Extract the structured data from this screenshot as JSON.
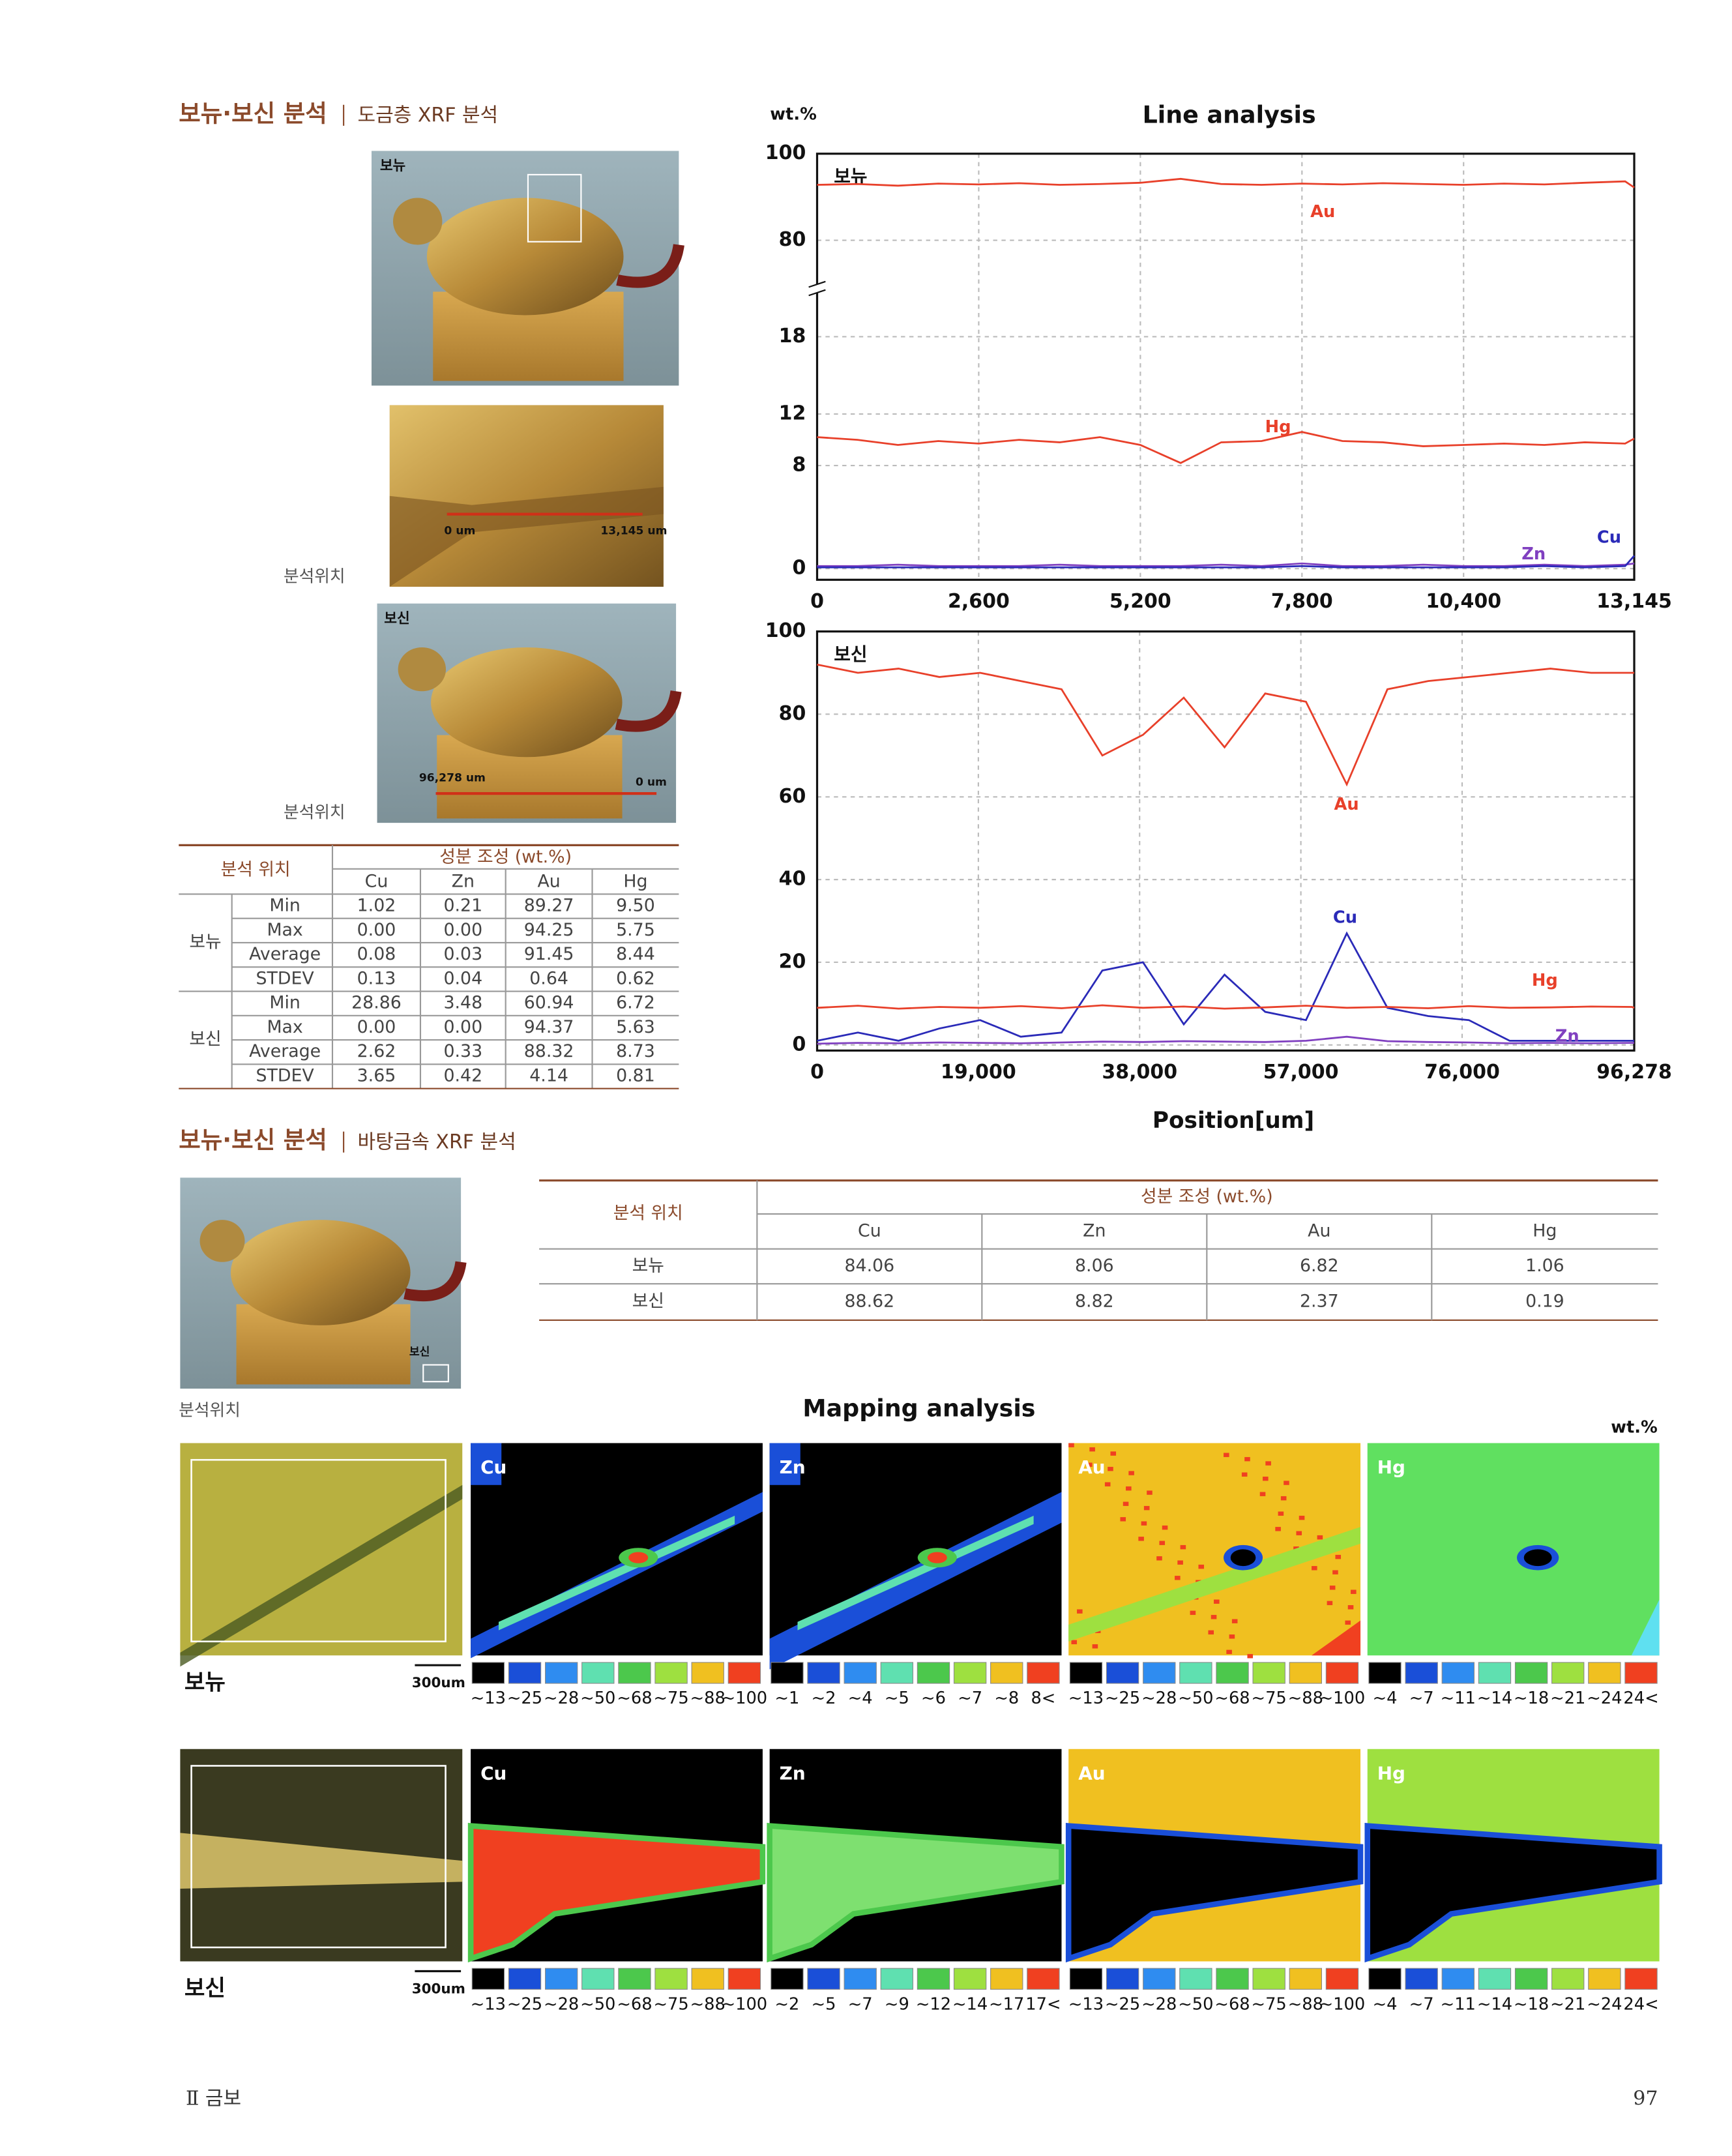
{
  "section1": {
    "title": "보뉴·보신 분석",
    "subtitle": "도금층 XRF 분석"
  },
  "photos": {
    "bonyu": "보뉴",
    "bosin": "보신",
    "position_label": "분석위치",
    "scan1_start": "0 um",
    "scan1_end": "13,145 um",
    "scan2_start": "96,278 um",
    "scan2_end": "0 um"
  },
  "table1": {
    "header": [
      "분석 위치",
      "성분 조성 (wt.%)"
    ],
    "columns": [
      "Cu",
      "Zn",
      "Au",
      "Hg"
    ],
    "groups": [
      {
        "name": "보뉴",
        "rows": [
          {
            "stat": "Min",
            "values": [
              "1.02",
              "0.21",
              "89.27",
              "9.50"
            ]
          },
          {
            "stat": "Max",
            "values": [
              "0.00",
              "0.00",
              "94.25",
              "5.75"
            ]
          },
          {
            "stat": "Average",
            "values": [
              "0.08",
              "0.03",
              "91.45",
              "8.44"
            ]
          },
          {
            "stat": "STDEV",
            "values": [
              "0.13",
              "0.04",
              "0.64",
              "0.62"
            ]
          }
        ]
      },
      {
        "name": "보신",
        "rows": [
          {
            "stat": "Min",
            "values": [
              "28.86",
              "3.48",
              "60.94",
              "6.72"
            ]
          },
          {
            "stat": "Max",
            "values": [
              "0.00",
              "0.00",
              "94.37",
              "5.63"
            ]
          },
          {
            "stat": "Average",
            "values": [
              "2.62",
              "0.33",
              "88.32",
              "8.73"
            ]
          },
          {
            "stat": "STDEV",
            "values": [
              "3.65",
              "0.42",
              "4.14",
              "0.81"
            ]
          }
        ]
      }
    ]
  },
  "line_analysis": {
    "title": "Line analysis",
    "y_unit": "wt.%",
    "x_label": "Position[um]",
    "grid": true,
    "charts": [
      {
        "type": "line",
        "panel_label": "보뉴",
        "xlim": [
          0,
          13145
        ],
        "xticks": [
          0,
          {
            "value": 2600,
            "label": "2,600"
          },
          {
            "value": 5200,
            "label": "5,200"
          },
          {
            "value": 7800,
            "label": "7,800"
          },
          {
            "value": 10400,
            "label": "10,400"
          },
          {
            "value": 13145,
            "label": "13,145"
          }
        ],
        "ylim": [
          0,
          100
        ],
        "axis_break": [
          18,
          80
        ],
        "yticks": [
          0,
          8,
          12,
          18,
          80,
          100
        ],
        "x": [
          0,
          650,
          1300,
          1950,
          2600,
          3250,
          3900,
          4550,
          5200,
          5850,
          6500,
          7150,
          7800,
          8450,
          9100,
          9750,
          10400,
          11050,
          11700,
          12350,
          13000,
          13145
        ],
        "series": [
          {
            "name": "Au",
            "color": "#e8402a",
            "values": [
              92.8,
              93.0,
              92.6,
              93.1,
              92.9,
              93.2,
              92.8,
              93.0,
              93.3,
              94.2,
              93.0,
              92.8,
              93.1,
              92.9,
              93.2,
              93.0,
              92.8,
              93.1,
              92.9,
              93.3,
              93.6,
              92.2
            ]
          },
          {
            "name": "Hg",
            "color": "#e8402a",
            "values": [
              10.2,
              10.0,
              9.6,
              9.9,
              9.7,
              10.0,
              9.8,
              10.2,
              9.6,
              8.2,
              9.8,
              9.9,
              10.6,
              9.9,
              9.8,
              9.5,
              9.6,
              9.7,
              9.6,
              9.8,
              9.7,
              10.1
            ]
          },
          {
            "name": "Zn",
            "color": "#8040c0",
            "values": [
              0.2,
              0.2,
              0.3,
              0.2,
              0.2,
              0.2,
              0.3,
              0.2,
              0.2,
              0.2,
              0.3,
              0.2,
              0.4,
              0.2,
              0.2,
              0.3,
              0.2,
              0.2,
              0.3,
              0.2,
              0.3,
              0.4
            ]
          },
          {
            "name": "Cu",
            "color": "#2a2ab8",
            "values": [
              0.1,
              0.1,
              0.1,
              0.1,
              0.1,
              0.1,
              0.1,
              0.1,
              0.1,
              0.1,
              0.1,
              0.1,
              0.2,
              0.1,
              0.1,
              0.1,
              0.1,
              0.1,
              0.2,
              0.1,
              0.2,
              1.0
            ]
          }
        ]
      },
      {
        "type": "line",
        "panel_label": "보신",
        "xlim": [
          0,
          96278
        ],
        "xticks": [
          0,
          {
            "value": 19000,
            "label": "19,000"
          },
          {
            "value": 38000,
            "label": "38,000"
          },
          {
            "value": 57000,
            "label": "57,000"
          },
          {
            "value": 76000,
            "label": "76,000"
          },
          {
            "value": 96278,
            "label": "96,278"
          }
        ],
        "ylim": [
          0,
          100
        ],
        "yticks": [
          0,
          20,
          40,
          60,
          80,
          100
        ],
        "x": [
          0,
          4800,
          9600,
          14400,
          19200,
          24000,
          28800,
          33600,
          38400,
          43200,
          48000,
          52800,
          57600,
          62400,
          67200,
          72000,
          76800,
          81600,
          86400,
          91200,
          96000,
          96278
        ],
        "series": [
          {
            "name": "Au",
            "color": "#e8402a",
            "values": [
              92,
              90,
              91,
              89,
              90,
              88,
              86,
              70,
              75,
              84,
              72,
              85,
              83,
              63,
              86,
              88,
              89,
              90,
              91,
              90,
              90,
              90
            ]
          },
          {
            "name": "Cu",
            "color": "#2a2ab8",
            "values": [
              1,
              3,
              1,
              4,
              6,
              2,
              3,
              18,
              20,
              5,
              17,
              8,
              6,
              27,
              9,
              7,
              6,
              1,
              1,
              1,
              1,
              1
            ]
          },
          {
            "name": "Hg",
            "color": "#e8402a",
            "values": [
              9,
              9.5,
              8.8,
              9.2,
              9,
              9.4,
              8.9,
              9.6,
              9,
              9.3,
              8.8,
              9.1,
              9.5,
              9,
              9.2,
              8.9,
              9.4,
              9,
              9.1,
              9.3,
              9.2,
              9
            ]
          },
          {
            "name": "Zn",
            "color": "#8040c0",
            "values": [
              0.3,
              0.5,
              0.4,
              0.6,
              0.5,
              0.4,
              0.6,
              0.8,
              0.7,
              0.9,
              0.8,
              0.7,
              1.0,
              2.0,
              0.9,
              0.7,
              0.6,
              0.4,
              0.5,
              0.4,
              0.5,
              0.5
            ]
          }
        ]
      }
    ]
  },
  "section2": {
    "title": "보뉴·보신 분석",
    "subtitle": "바탕금속 XRF 분석",
    "photo_label": "보신",
    "position_label": "분석위치"
  },
  "table2": {
    "header": [
      "분석 위치",
      "성분 조성 (wt.%)"
    ],
    "columns": [
      "Cu",
      "Zn",
      "Au",
      "Hg"
    ],
    "rows": [
      {
        "name": "보뉴",
        "values": [
          "84.06",
          "8.06",
          "6.82",
          "1.06"
        ]
      },
      {
        "name": "보신",
        "values": [
          "88.62",
          "8.82",
          "2.37",
          "0.19"
        ]
      }
    ]
  },
  "mapping": {
    "title": "Mapping analysis",
    "unit": "wt.%",
    "scale_label": "300um",
    "legend_colors": [
      "#000000",
      "#1a4fd8",
      "#2f8cf0",
      "#5fe0b0",
      "#4cc84c",
      "#9ee040",
      "#f0c020",
      "#f04020"
    ],
    "rows": [
      {
        "name": "보뉴",
        "panels": [
          {
            "element": "Cu",
            "legend": [
              "~13",
              "~25",
              "~28",
              "~50",
              "~68",
              "~75",
              "~88",
              "~100"
            ]
          },
          {
            "element": "Zn",
            "legend": [
              "~1",
              "~2",
              "~4",
              "~5",
              "~6",
              "~7",
              "~8",
              "8<"
            ]
          },
          {
            "element": "Au",
            "legend": [
              "~13",
              "~25",
              "~28",
              "~50",
              "~68",
              "~75",
              "~88",
              "~100"
            ]
          },
          {
            "element": "Hg",
            "legend": [
              "~4",
              "~7",
              "~11",
              "~14",
              "~18",
              "~21",
              "~24",
              "24<"
            ]
          }
        ]
      },
      {
        "name": "보신",
        "panels": [
          {
            "element": "Cu",
            "legend": [
              "~13",
              "~25",
              "~28",
              "~50",
              "~68",
              "~75",
              "~88",
              "~100"
            ]
          },
          {
            "element": "Zn",
            "legend": [
              "~2",
              "~5",
              "~7",
              "~9",
              "~12",
              "~14",
              "~17",
              "17<"
            ]
          },
          {
            "element": "Au",
            "legend": [
              "~13",
              "~25",
              "~28",
              "~50",
              "~68",
              "~75",
              "~88",
              "~100"
            ]
          },
          {
            "element": "Hg",
            "legend": [
              "~4",
              "~7",
              "~11",
              "~14",
              "~18",
              "~21",
              "~24",
              "24<"
            ]
          }
        ]
      }
    ]
  },
  "footer": {
    "chapter": "Ⅱ 금보",
    "page": "97"
  }
}
